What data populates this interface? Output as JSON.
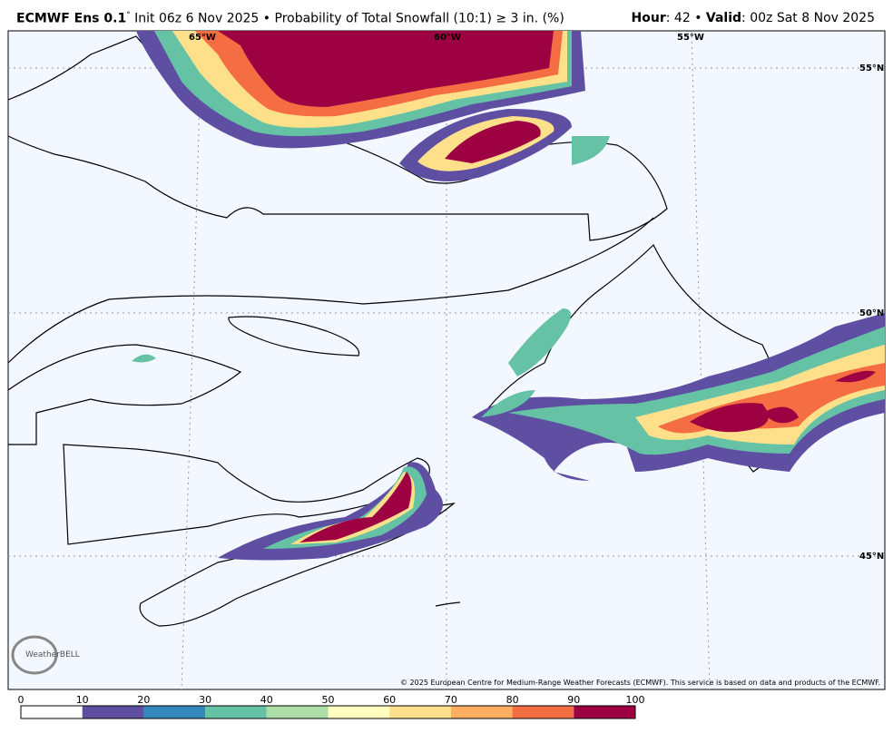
{
  "header": {
    "model": "ECMWF Ens 0.1",
    "degree": "°",
    "description": " Init 06z 6 Nov 2025 • Probability of Total Snowfall (10:1) ≥ 3 in. (%)",
    "hour_label": "Hour",
    "hour_value": ": 42 • ",
    "valid_label": "Valid",
    "valid_value": ": 00z Sat 8 Nov 2025"
  },
  "map": {
    "lon_labels": [
      "65°W",
      "60°W",
      "55°W"
    ],
    "lat_labels": [
      "55°N",
      "50°N",
      "45°N"
    ],
    "logo": "WeatherBELL",
    "copyright": "© 2025 European Centre for Medium-Range Weather Forecasts (ECMWF). This service is based on data and products of the ECMWF."
  },
  "colorbar": {
    "ticks": [
      0,
      10,
      20,
      30,
      40,
      50,
      60,
      70,
      80,
      90,
      100
    ],
    "colors": [
      "#ffffff",
      "#5e4fa2",
      "#3288bd",
      "#66c2a5",
      "#abdda4",
      "#ffffbf",
      "#fee08b",
      "#fdae61",
      "#f46d43",
      "#9e0142"
    ]
  }
}
